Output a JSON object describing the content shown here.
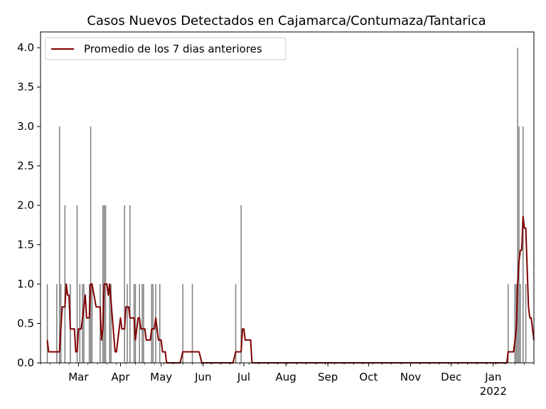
{
  "chart_data": {
    "type": "bar",
    "title": "Casos Nuevos Detectados en Cajamarca/Contumaza/Tantarica",
    "xlabel": "",
    "ylabel": "",
    "x_range": [
      "2021-02-01",
      "2022-01-31"
    ],
    "ylim": [
      0,
      4.2
    ],
    "y_ticks": [
      0.0,
      0.5,
      1.0,
      1.5,
      2.0,
      2.5,
      3.0,
      3.5,
      4.0
    ],
    "y_tick_labels": [
      "0.0",
      "0.5",
      "1.0",
      "1.5",
      "2.0",
      "2.5",
      "3.0",
      "3.5",
      "4.0"
    ],
    "x_ticks": [
      {
        "date": "2021-03-01",
        "label": "Mar",
        "sublabel": ""
      },
      {
        "date": "2021-04-01",
        "label": "Apr",
        "sublabel": ""
      },
      {
        "date": "2021-05-01",
        "label": "May",
        "sublabel": ""
      },
      {
        "date": "2021-06-01",
        "label": "Jun",
        "sublabel": ""
      },
      {
        "date": "2021-07-01",
        "label": "Jul",
        "sublabel": ""
      },
      {
        "date": "2021-08-01",
        "label": "Aug",
        "sublabel": ""
      },
      {
        "date": "2021-09-01",
        "label": "Sep",
        "sublabel": ""
      },
      {
        "date": "2021-10-01",
        "label": "Oct",
        "sublabel": ""
      },
      {
        "date": "2021-11-01",
        "label": "Nov",
        "sublabel": ""
      },
      {
        "date": "2021-12-01",
        "label": "Dec",
        "sublabel": ""
      },
      {
        "date": "2022-01-01",
        "label": "Jan",
        "sublabel": "2022"
      }
    ],
    "bar_color": "#808080",
    "line_color": "#800000",
    "legend": {
      "placement": "upper-left",
      "entries": [
        "Promedio de los 7 dias anteriores"
      ]
    },
    "series": [
      {
        "kind": "bar",
        "points": [
          [
            "2021-02-06",
            1
          ],
          [
            "2021-02-13",
            1
          ],
          [
            "2021-02-15",
            3
          ],
          [
            "2021-02-16",
            1
          ],
          [
            "2021-02-19",
            2
          ],
          [
            "2021-02-23",
            1
          ],
          [
            "2021-02-28",
            2
          ],
          [
            "2021-03-02",
            1
          ],
          [
            "2021-03-04",
            1
          ],
          [
            "2021-03-05",
            1
          ],
          [
            "2021-03-09",
            1
          ],
          [
            "2021-03-10",
            3
          ],
          [
            "2021-03-11",
            1
          ],
          [
            "2021-03-17",
            1
          ],
          [
            "2021-03-19",
            2
          ],
          [
            "2021-03-20",
            2
          ],
          [
            "2021-03-21",
            2
          ],
          [
            "2021-03-24",
            1
          ],
          [
            "2021-03-25",
            1
          ],
          [
            "2021-04-04",
            2
          ],
          [
            "2021-04-06",
            1
          ],
          [
            "2021-04-08",
            2
          ],
          [
            "2021-04-11",
            1
          ],
          [
            "2021-04-12",
            1
          ],
          [
            "2021-04-15",
            1
          ],
          [
            "2021-04-17",
            1
          ],
          [
            "2021-04-18",
            1
          ],
          [
            "2021-04-24",
            1
          ],
          [
            "2021-04-25",
            1
          ],
          [
            "2021-04-27",
            1
          ],
          [
            "2021-04-30",
            1
          ],
          [
            "2021-05-17",
            1
          ],
          [
            "2021-05-24",
            1
          ],
          [
            "2021-06-25",
            1
          ],
          [
            "2021-06-29",
            2
          ],
          [
            "2022-01-12",
            1
          ],
          [
            "2022-01-17",
            1
          ],
          [
            "2022-01-18",
            1
          ],
          [
            "2022-01-19",
            4
          ],
          [
            "2022-01-20",
            3
          ],
          [
            "2022-01-21",
            1
          ],
          [
            "2022-01-23",
            3
          ],
          [
            "2022-01-25",
            1
          ]
        ]
      },
      {
        "kind": "line",
        "name": "Promedio de los 7 dias anteriores",
        "points": [
          [
            "2021-02-06",
            0.29
          ],
          [
            "2021-02-07",
            0.14
          ],
          [
            "2021-02-15",
            0.14
          ],
          [
            "2021-02-16",
            0.43
          ],
          [
            "2021-02-17",
            0.71
          ],
          [
            "2021-02-19",
            0.71
          ],
          [
            "2021-02-20",
            1.0
          ],
          [
            "2021-02-21",
            0.86
          ],
          [
            "2021-02-22",
            0.86
          ],
          [
            "2021-02-23",
            0.43
          ],
          [
            "2021-02-26",
            0.43
          ],
          [
            "2021-02-27",
            0.14
          ],
          [
            "2021-02-28",
            0.14
          ],
          [
            "2021-03-01",
            0.43
          ],
          [
            "2021-03-03",
            0.43
          ],
          [
            "2021-03-04",
            0.57
          ],
          [
            "2021-03-06",
            0.86
          ],
          [
            "2021-03-07",
            0.57
          ],
          [
            "2021-03-09",
            0.57
          ],
          [
            "2021-03-10",
            1.0
          ],
          [
            "2021-03-11",
            1.0
          ],
          [
            "2021-03-14",
            0.71
          ],
          [
            "2021-03-17",
            0.71
          ],
          [
            "2021-03-18",
            0.29
          ],
          [
            "2021-03-19",
            0.43
          ],
          [
            "2021-03-20",
            1.0
          ],
          [
            "2021-03-22",
            1.0
          ],
          [
            "2021-03-23",
            0.86
          ],
          [
            "2021-03-24",
            1.0
          ],
          [
            "2021-03-26",
            0.57
          ],
          [
            "2021-03-28",
            0.14
          ],
          [
            "2021-03-29",
            0.14
          ],
          [
            "2021-04-01",
            0.57
          ],
          [
            "2021-04-02",
            0.43
          ],
          [
            "2021-04-04",
            0.43
          ],
          [
            "2021-04-05",
            0.71
          ],
          [
            "2021-04-07",
            0.71
          ],
          [
            "2021-04-08",
            0.57
          ],
          [
            "2021-04-11",
            0.57
          ],
          [
            "2021-04-12",
            0.29
          ],
          [
            "2021-04-14",
            0.57
          ],
          [
            "2021-04-15",
            0.57
          ],
          [
            "2021-04-16",
            0.43
          ],
          [
            "2021-04-19",
            0.43
          ],
          [
            "2021-04-20",
            0.29
          ],
          [
            "2021-04-23",
            0.29
          ],
          [
            "2021-04-24",
            0.43
          ],
          [
            "2021-04-26",
            0.43
          ],
          [
            "2021-04-27",
            0.57
          ],
          [
            "2021-04-29",
            0.29
          ],
          [
            "2021-05-01",
            0.29
          ],
          [
            "2021-05-02",
            0.14
          ],
          [
            "2021-05-04",
            0.14
          ],
          [
            "2021-05-05",
            0.0
          ],
          [
            "2021-05-15",
            0.0
          ],
          [
            "2021-05-17",
            0.14
          ],
          [
            "2021-05-29",
            0.14
          ],
          [
            "2021-05-31",
            0.0
          ],
          [
            "2021-06-23",
            0.0
          ],
          [
            "2021-06-25",
            0.14
          ],
          [
            "2021-06-29",
            0.14
          ],
          [
            "2021-06-30",
            0.43
          ],
          [
            "2021-07-01",
            0.43
          ],
          [
            "2021-07-02",
            0.29
          ],
          [
            "2021-07-06",
            0.29
          ],
          [
            "2021-07-07",
            0.0
          ],
          [
            "2022-01-11",
            0.0
          ],
          [
            "2022-01-12",
            0.14
          ],
          [
            "2022-01-16",
            0.14
          ],
          [
            "2022-01-18",
            0.43
          ],
          [
            "2022-01-19",
            1.0
          ],
          [
            "2022-01-20",
            1.29
          ],
          [
            "2022-01-21",
            1.43
          ],
          [
            "2022-01-22",
            1.43
          ],
          [
            "2022-01-23",
            1.86
          ],
          [
            "2022-01-24",
            1.71
          ],
          [
            "2022-01-25",
            1.71
          ],
          [
            "2022-01-27",
            0.71
          ],
          [
            "2022-01-28",
            0.57
          ],
          [
            "2022-01-29",
            0.57
          ],
          [
            "2022-01-31",
            0.29
          ]
        ]
      }
    ]
  }
}
